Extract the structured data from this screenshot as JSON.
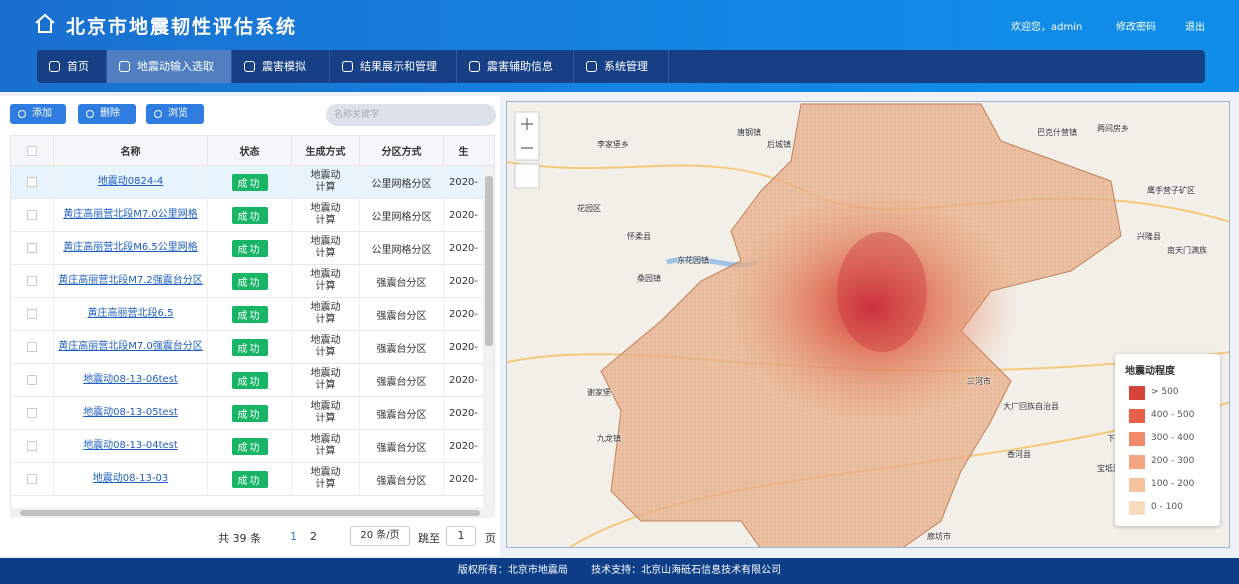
{
  "header": {
    "title": "北京市地震韧性评估系统",
    "welcome": "欢迎您，admin",
    "change_password": "修改密码",
    "logout": "退出"
  },
  "nav": [
    "首页",
    "地震动输入选取",
    "震害模拟",
    "结果展示和管理",
    "震害辅助信息",
    "系统管理"
  ],
  "active_nav": 1,
  "toolbar": {
    "buttons": [
      "添加",
      "删除",
      "浏览"
    ],
    "search_placeholder": "名称关键字"
  },
  "table": {
    "columns": [
      "名称",
      "状态",
      "生成方式",
      "分区方式",
      "生"
    ],
    "rows": [
      [
        "地震动0824-4",
        "成功",
        "地震动计算",
        "公里网格分区",
        "2020-"
      ],
      [
        "黄庄高丽营北段M7.0公里网格",
        "成功",
        "地震动计算",
        "公里网格分区",
        "2020-"
      ],
      [
        "黄庄高丽营北段M6.5公里网格",
        "成功",
        "地震动计算",
        "公里网格分区",
        "2020-"
      ],
      [
        "黄庄高丽营北段M7.2强震台分区",
        "成功",
        "地震动计算",
        "强震台分区",
        "2020-"
      ],
      [
        "黄庄高丽营北段6.5",
        "成功",
        "地震动计算",
        "强震台分区",
        "2020-"
      ],
      [
        "黄庄高丽营北段M7.0强震台分区",
        "成功",
        "地震动计算",
        "强震台分区",
        "2020-"
      ],
      [
        "地震动08-13-06test",
        "成功",
        "地震动计算",
        "强震台分区",
        "2020-"
      ],
      [
        "地震动08-13-05test",
        "成功",
        "地震动计算",
        "强震台分区",
        "2020-"
      ],
      [
        "地震动08-13-04test",
        "成功",
        "地震动计算",
        "强震台分区",
        "2020-"
      ],
      [
        "地震动08-13-03",
        "成功",
        "地震动计算",
        "强震台分区",
        "2020-"
      ]
    ]
  },
  "pagination": {
    "total": "共 39 条",
    "pages": [
      "1",
      "2"
    ],
    "page_size": "20 条/页",
    "jump": "跳至",
    "jump_value": "1",
    "page_unit": "页"
  },
  "map": {
    "legend": {
      "title": "地震动程度",
      "items": [
        {
          "label": "> 500",
          "color": "#d7423a"
        },
        {
          "label": "400 - 500",
          "color": "#e8604a"
        },
        {
          "label": "300 - 400",
          "color": "#f08a6a"
        },
        {
          "label": "200 - 300",
          "color": "#f2a57f"
        },
        {
          "label": "100 - 200",
          "color": "#f6c39c"
        },
        {
          "label": "0 - 100",
          "color": "#f9dcc0"
        }
      ]
    },
    "places": [
      "唐钢镇",
      "李家堡乡",
      "后城镇",
      "巴克什营镇",
      "两间房乡",
      "花园区",
      "怀柔县",
      "东花园镇",
      "桑园镇",
      "兴隆县",
      "鹰手营子矿区",
      "南天门满族",
      "三河市",
      "大厂回族自治县",
      "香河县",
      "廊坊市",
      "九龙镇",
      "谢家堡",
      "宝坻区",
      "下营镇"
    ]
  },
  "footer": {
    "copyright": "版权所有：北京市地震局",
    "support": "技术支持：北京山海砥石信息技术有限公司"
  }
}
